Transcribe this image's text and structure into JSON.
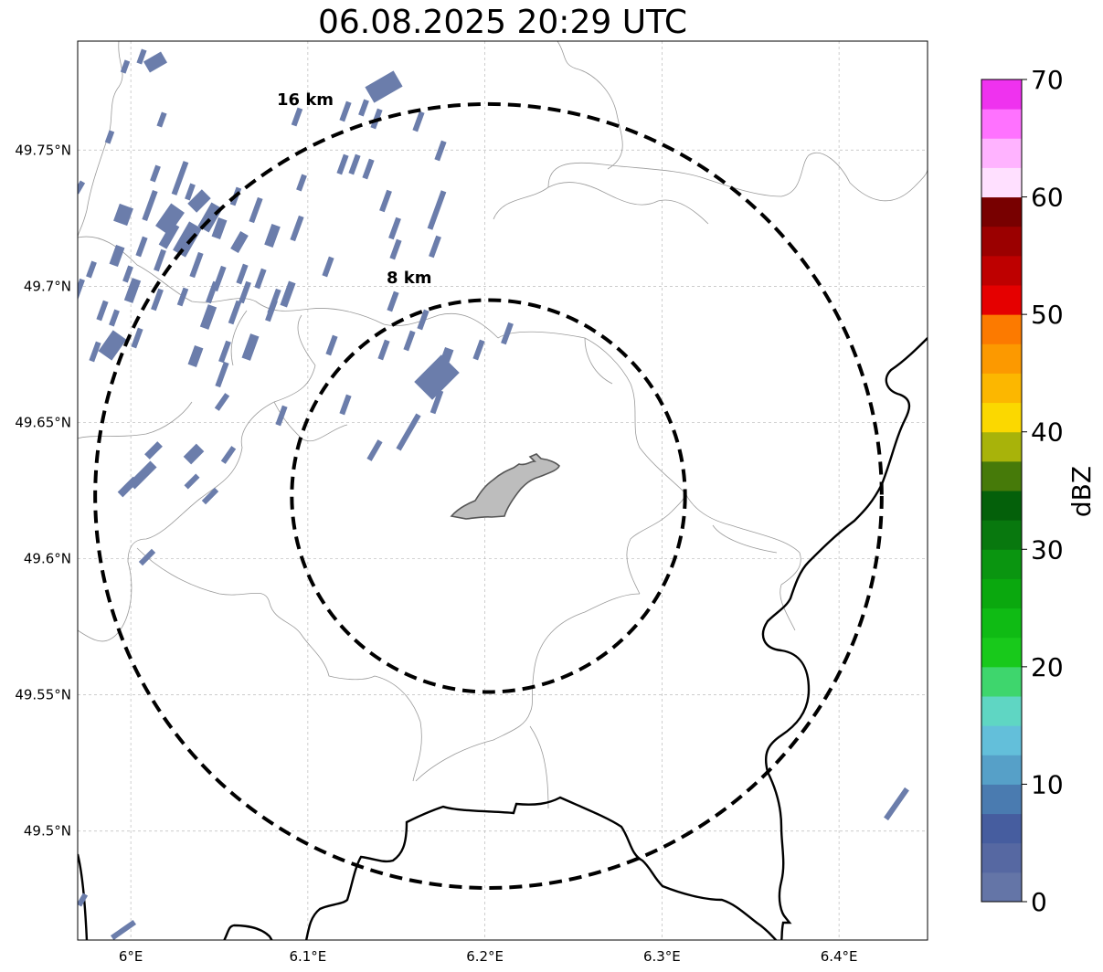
{
  "title": "06.08.2025 20:29 UTC",
  "map": {
    "lon_range": [
      5.97,
      6.45
    ],
    "lat_range": [
      49.46,
      49.79
    ],
    "center": {
      "lon": 6.202,
      "lat": 49.623
    },
    "x_ticks": [
      {
        "value": 6.0,
        "label": "6°E"
      },
      {
        "value": 6.1,
        "label": "6.1°E"
      },
      {
        "value": 6.2,
        "label": "6.2°E"
      },
      {
        "value": 6.3,
        "label": "6.3°E"
      },
      {
        "value": 6.4,
        "label": "6.4°E"
      }
    ],
    "y_ticks": [
      {
        "value": 49.75,
        "label": "49.75°N"
      },
      {
        "value": 49.7,
        "label": "49.7°N"
      },
      {
        "value": 49.65,
        "label": "49.65°N"
      },
      {
        "value": 49.6,
        "label": "49.6°N"
      },
      {
        "value": 49.55,
        "label": "49.55°N"
      },
      {
        "value": 49.5,
        "label": "49.5°N"
      }
    ],
    "grid": true,
    "rings": [
      {
        "radius_km": 8,
        "label": "8 km"
      },
      {
        "radius_km": 16,
        "label": "16 km"
      }
    ],
    "reflectivity_color": "#6b7dab",
    "urban_area_color": "#bdbdbd"
  },
  "colorbar": {
    "label": "dBZ",
    "min": 0,
    "max": 70,
    "ticks": [
      {
        "value": 0,
        "label": "0"
      },
      {
        "value": 10,
        "label": "10"
      },
      {
        "value": 20,
        "label": "20"
      },
      {
        "value": 30,
        "label": "30"
      },
      {
        "value": 40,
        "label": "40"
      },
      {
        "value": 50,
        "label": "50"
      },
      {
        "value": 60,
        "label": "60"
      },
      {
        "value": 70,
        "label": "70"
      }
    ],
    "colors": [
      "#6475a7",
      "#5668a2",
      "#465d9f",
      "#4a7bb0",
      "#56a0c8",
      "#63bfda",
      "#5fd6c3",
      "#3ed66d",
      "#18c91b",
      "#0fbb14",
      "#0aa80e",
      "#0a9510",
      "#08780e",
      "#04600a",
      "#467a09",
      "#a8b30a",
      "#fbd800",
      "#fcb700",
      "#fc9900",
      "#fc7a00",
      "#e50000",
      "#be0000",
      "#9b0000",
      "#780000",
      "#ffe0ff",
      "#ffb3ff",
      "#ff72ff",
      "#ef32ef"
    ]
  }
}
